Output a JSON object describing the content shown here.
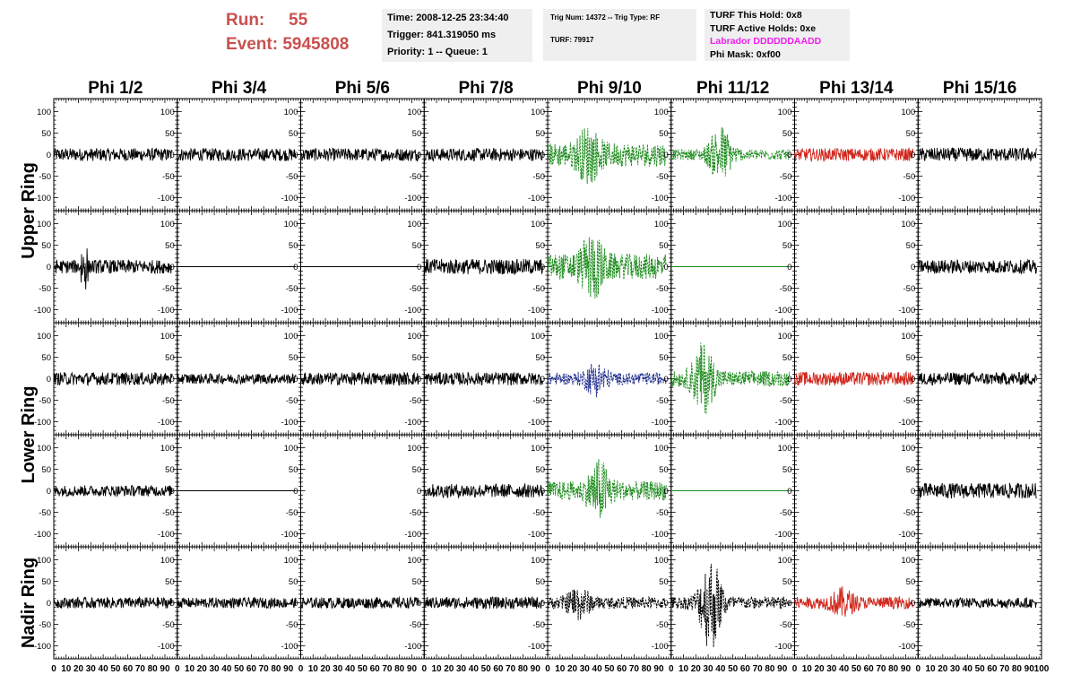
{
  "header": {
    "run_label": "Run:",
    "run_value": "55",
    "event_label": "Event:",
    "event_value": "5945808",
    "time": "Time: 2008-12-25 23:34:40",
    "trigger": "Trigger: 841.319050 ms",
    "priority": "Priority: 1 -- Queue: 1",
    "trig_num": "Trig Num: 14372 -- Trig Type: RF",
    "turf": "TURF: 79917",
    "turf_this_hold": "TURF This Hold: 0x8",
    "turf_active_holds": "TURF Active Holds: 0xe",
    "labrador": "Labrador DDDDDDAADD",
    "phi_mask": "Phi Mask: 0xf00"
  },
  "colors": {
    "run_text": "#c9504e",
    "labrador_text": "#f01cf0",
    "normal_trace": "#000000",
    "triggered_green": "#1a8a1a",
    "triggered_blue": "#1c2a8a",
    "masked_red": "#d0281e"
  },
  "chart_data": {
    "type": "line",
    "columns": [
      "Phi 1/2",
      "Phi 3/4",
      "Phi 5/6",
      "Phi 7/8",
      "Phi 9/10",
      "Phi 11/12",
      "Phi 13/14",
      "Phi 15/16"
    ],
    "row_groups": [
      {
        "label": "Upper Ring",
        "rows": [
          0,
          1
        ]
      },
      {
        "label": "Lower Ring",
        "rows": [
          2,
          3
        ]
      },
      {
        "label": "Nadir Ring",
        "rows": [
          4
        ]
      }
    ],
    "xlim": [
      0,
      100
    ],
    "ylim": [
      -130,
      130
    ],
    "x_ticks": [
      0,
      10,
      20,
      30,
      40,
      50,
      60,
      70,
      80,
      90,
      100
    ],
    "y_ticks": [
      -100,
      -50,
      0,
      50,
      100
    ],
    "trace_x_range": [
      0,
      96
    ],
    "panels": [
      [
        {
          "style": "black",
          "amp": 15
        },
        {
          "style": "black",
          "amp": 15
        },
        {
          "style": "black",
          "amp": 15
        },
        {
          "style": "black",
          "amp": 15
        },
        {
          "style": "green",
          "amp": 28,
          "burst": 45
        },
        {
          "style": "green",
          "amp": 12,
          "burst": 60
        },
        {
          "style": "red",
          "amp": 15
        },
        {
          "style": "black",
          "amp": 16
        }
      ],
      [
        {
          "style": "black",
          "amp": 16,
          "spike": 55
        },
        {
          "style": "flat",
          "amp": 0
        },
        {
          "style": "flat",
          "amp": 0
        },
        {
          "style": "black",
          "amp": 18
        },
        {
          "style": "green",
          "amp": 30,
          "burst": 55
        },
        {
          "style": "flat-green",
          "amp": 0
        },
        {
          "style": "empty"
        },
        {
          "style": "black",
          "amp": 16
        }
      ],
      [
        {
          "style": "black",
          "amp": 15
        },
        {
          "style": "black",
          "amp": 12
        },
        {
          "style": "black",
          "amp": 15
        },
        {
          "style": "black",
          "amp": 15
        },
        {
          "style": "blue",
          "amp": 14,
          "burst": 30
        },
        {
          "style": "green",
          "amp": 18,
          "burst": 70
        },
        {
          "style": "red",
          "amp": 16
        },
        {
          "style": "black",
          "amp": 15
        }
      ],
      [
        {
          "style": "black",
          "amp": 13
        },
        {
          "style": "flat",
          "amp": 0
        },
        {
          "style": "empty"
        },
        {
          "style": "black",
          "amp": 16
        },
        {
          "style": "green",
          "amp": 22,
          "burst": 55
        },
        {
          "style": "flat-green",
          "amp": 0
        },
        {
          "style": "empty"
        },
        {
          "style": "black",
          "amp": 18
        }
      ],
      [
        {
          "style": "black",
          "amp": 13
        },
        {
          "style": "black",
          "amp": 12
        },
        {
          "style": "black",
          "amp": 13
        },
        {
          "style": "black",
          "amp": 14
        },
        {
          "style": "black-dash",
          "amp": 14,
          "burst": 30
        },
        {
          "style": "black-dash",
          "amp": 15,
          "burst": 100
        },
        {
          "style": "red",
          "amp": 14,
          "burst": 25
        },
        {
          "style": "black",
          "amp": 12
        }
      ]
    ]
  }
}
